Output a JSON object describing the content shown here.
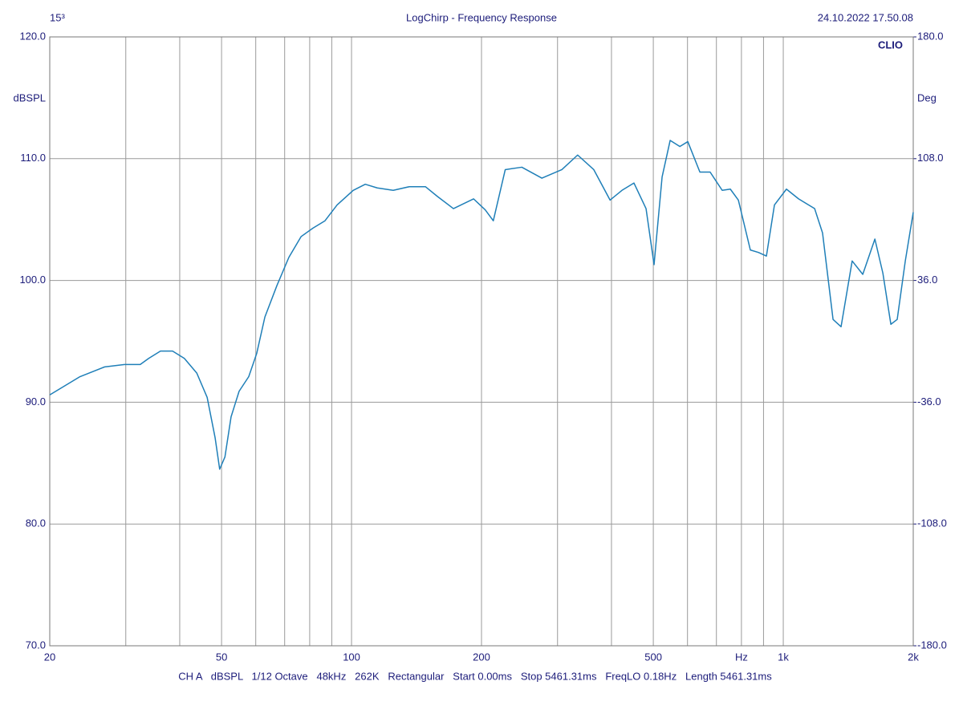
{
  "chart_data": {
    "type": "line",
    "title": "LogChirp - Frequency Response",
    "top_left_label": "15³",
    "timestamp": "24.10.2022 17.50.08",
    "brand": "CLIO",
    "ylabel": "dBSPL",
    "y2label": "Deg",
    "footer": "CH A   dBSPL   1/12 Octave   48kHz   262K   Rectangular   Start 0.00ms   Stop 5461.31ms   FreqLO 0.18Hz   Length 5461.31ms",
    "xscale": "log",
    "xlim": [
      20,
      2000
    ],
    "xticks": [
      20,
      50,
      100,
      200,
      500,
      {
        "value": 800,
        "label": "Hz"
      },
      {
        "value": 1000,
        "label": "1k"
      },
      {
        "value": 2000,
        "label": "2k"
      }
    ],
    "minor_xticks": [
      30,
      40,
      60,
      70,
      80,
      90,
      300,
      400,
      600,
      700,
      900
    ],
    "ylim": [
      70,
      120
    ],
    "yticks": [
      {
        "value": 70,
        "label": "70.0"
      },
      {
        "value": 80,
        "label": "80.0"
      },
      {
        "value": 90,
        "label": "90.0"
      },
      {
        "value": 100,
        "label": "100.0"
      },
      {
        "value": 110,
        "label": "110.0"
      },
      {
        "value": 120,
        "label": "120.0"
      }
    ],
    "y2lim": [
      -180,
      180
    ],
    "y2ticks": [
      {
        "value": -180,
        "label": "-180.0"
      },
      {
        "value": -108,
        "label": "-108.0"
      },
      {
        "value": -36,
        "label": "-36.0"
      },
      {
        "value": 36,
        "label": "36.0"
      },
      {
        "value": 108,
        "label": "108.0"
      },
      {
        "value": 180,
        "label": "180.0"
      }
    ],
    "grid": true,
    "color": "#1f7fb8",
    "x": [
      20,
      23.5,
      26.8,
      29.8,
      32.4,
      33.9,
      36.1,
      38.5,
      41.0,
      43.8,
      46.3,
      48.3,
      49.5,
      50.9,
      52.6,
      54.9,
      57.8,
      60.3,
      63.0,
      67.2,
      71.6,
      76.4,
      81.4,
      86.8,
      92.6,
      100.9,
      107.6,
      114.7,
      124.9,
      136.1,
      148.3,
      158.1,
      172.2,
      191.7,
      204,
      213,
      227,
      248,
      276,
      307,
      334,
      364,
      397,
      423,
      451,
      481,
      502,
      524,
      547,
      576,
      601,
      641,
      677,
      722,
      754,
      787,
      839,
      876,
      914,
      954,
      1017,
      1085,
      1182,
      1233,
      1304,
      1361,
      1444,
      1528,
      1630,
      1701,
      1775,
      1836,
      1917,
      2000
    ],
    "values": [
      90.6,
      92.1,
      92.9,
      93.1,
      93.1,
      93.6,
      94.2,
      94.2,
      93.6,
      92.4,
      90.4,
      87.1,
      84.5,
      85.5,
      88.8,
      90.9,
      92.1,
      94.0,
      97.0,
      99.6,
      101.9,
      103.6,
      104.3,
      104.9,
      106.2,
      107.4,
      107.9,
      107.6,
      107.4,
      107.7,
      107.7,
      106.9,
      105.9,
      106.7,
      105.8,
      104.9,
      109.1,
      109.3,
      108.4,
      109.1,
      110.3,
      109.1,
      106.6,
      107.4,
      108.0,
      105.9,
      101.3,
      108.5,
      111.5,
      111.0,
      111.4,
      108.9,
      108.9,
      107.4,
      107.5,
      106.6,
      102.5,
      102.3,
      102.0,
      106.2,
      107.5,
      106.7,
      105.9,
      103.9,
      96.8,
      96.2,
      101.6,
      100.5,
      103.4,
      100.6,
      96.4,
      96.8,
      101.6,
      105.6
    ]
  }
}
